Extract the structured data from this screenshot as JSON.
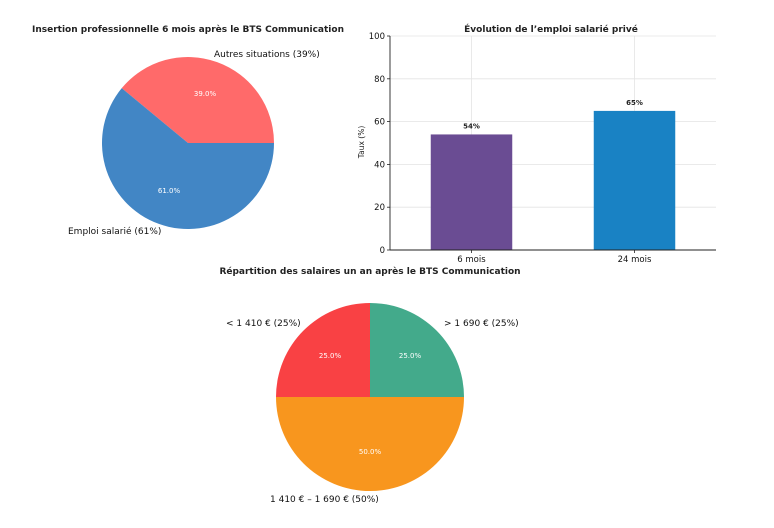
{
  "chart_data": [
    {
      "type": "pie",
      "title": "Insertion professionnelle 6 mois après le BTS Communication",
      "slices": [
        {
          "label": "Autres situations (39%)",
          "value": 39.0,
          "pct_label": "39.0%",
          "color": "#ff6a6a"
        },
        {
          "label": "Emploi salarié (61%)",
          "value": 61.0,
          "pct_label": "61.0%",
          "color": "#4286c5"
        }
      ]
    },
    {
      "type": "bar",
      "title": "Évolution de l’emploi salarié privé",
      "categories": [
        "6 mois",
        "24 mois"
      ],
      "values": [
        54,
        65
      ],
      "value_labels": [
        "54%",
        "65%"
      ],
      "colors": [
        "#6a4c93",
        "#1982c4"
      ],
      "ylabel": "Taux (%)",
      "xlabel": "",
      "ylim": [
        0,
        100
      ],
      "yticks": [
        "0",
        "20",
        "40",
        "60",
        "80",
        "100"
      ],
      "grid": true
    },
    {
      "type": "pie",
      "title": "Répartition des salaires un an après le BTS Communication",
      "slices": [
        {
          "label": "< 1 410 € (25%)",
          "value": 25.0,
          "pct_label": "25.0%",
          "color": "#f94144"
        },
        {
          "label": "1 410 € – 1 690 € (50%)",
          "value": 50.0,
          "pct_label": "50.0%",
          "color": "#f8961e"
        },
        {
          "label": "> 1 690 € (25%)",
          "value": 25.0,
          "pct_label": "25.0%",
          "color": "#43aa8b"
        }
      ]
    }
  ]
}
